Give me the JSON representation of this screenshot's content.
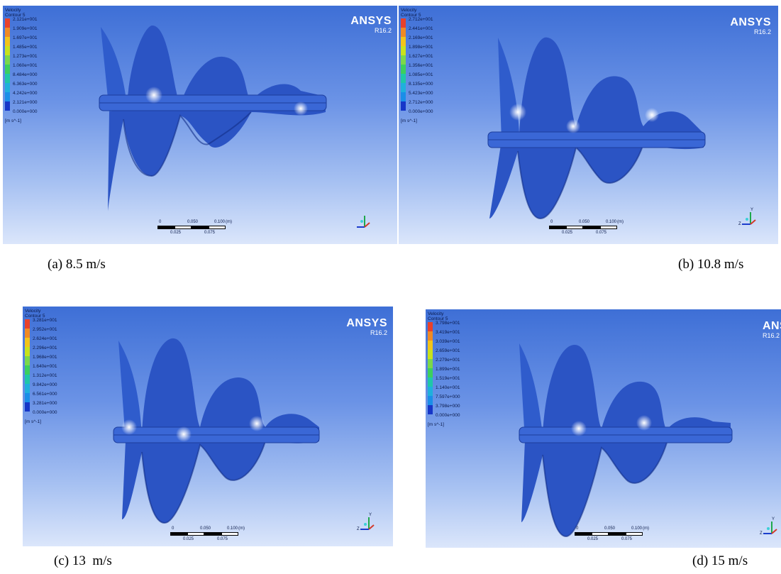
{
  "legend_title": [
    "Velocity",
    "Contour 5"
  ],
  "legend_unit": "[m s^-1]",
  "brand_name": "ANSYS",
  "brand_version": "R16.2",
  "scale_labels": {
    "zero": "0",
    "q1": "0.025",
    "half": "0.050",
    "q3": "0.075",
    "full": "0.100",
    "unit": "(m)"
  },
  "axis_labels": {
    "y": "Y",
    "z": "Z"
  },
  "colors": {
    "background_top": "#3e6fd6",
    "blade": "#2b54c4",
    "blade_dark": "#122f88"
  },
  "legend_colors": [
    "#e8412b",
    "#f08a24",
    "#f2c41a",
    "#c8e21c",
    "#7bd84a",
    "#3ccf5e",
    "#1fc7a8",
    "#1fb0dc",
    "#1a8ee8",
    "#1c67e0",
    "#1636c8"
  ],
  "panels": [
    {
      "id": "a",
      "caption": "(a) 8.5 m/s",
      "legend_values": [
        "2.121e+001",
        "1.909e+001",
        "1.697e+001",
        "1.485e+001",
        "1.273e+001",
        "1.060e+001",
        "8.484e+000",
        "6.363e+000",
        "4.242e+000",
        "2.121e+000",
        "0.000e+000"
      ]
    },
    {
      "id": "b",
      "caption": "(b) 10.8 m/s",
      "legend_values": [
        "2.712e+001",
        "2.441e+001",
        "2.169e+001",
        "1.898e+001",
        "1.627e+001",
        "1.356e+001",
        "1.085e+001",
        "8.135e+000",
        "5.423e+000",
        "2.712e+000",
        "0.000e+000"
      ]
    },
    {
      "id": "c",
      "caption": "(c) 13  m/s",
      "legend_values": [
        "3.281e+001",
        "2.952e+001",
        "2.624e+001",
        "2.296e+001",
        "1.968e+001",
        "1.640e+001",
        "1.312e+001",
        "9.842e+000",
        "6.561e+000",
        "3.281e+000",
        "0.000e+000"
      ]
    },
    {
      "id": "d",
      "caption": "(d) 15 m/s",
      "legend_values": [
        "3.798e+001",
        "3.419e+001",
        "3.039e+001",
        "2.659e+001",
        "2.279e+001",
        "1.899e+001",
        "1.519e+001",
        "1.140e+001",
        "7.597e+000",
        "3.798e+000",
        "0.000e+000"
      ]
    }
  ]
}
